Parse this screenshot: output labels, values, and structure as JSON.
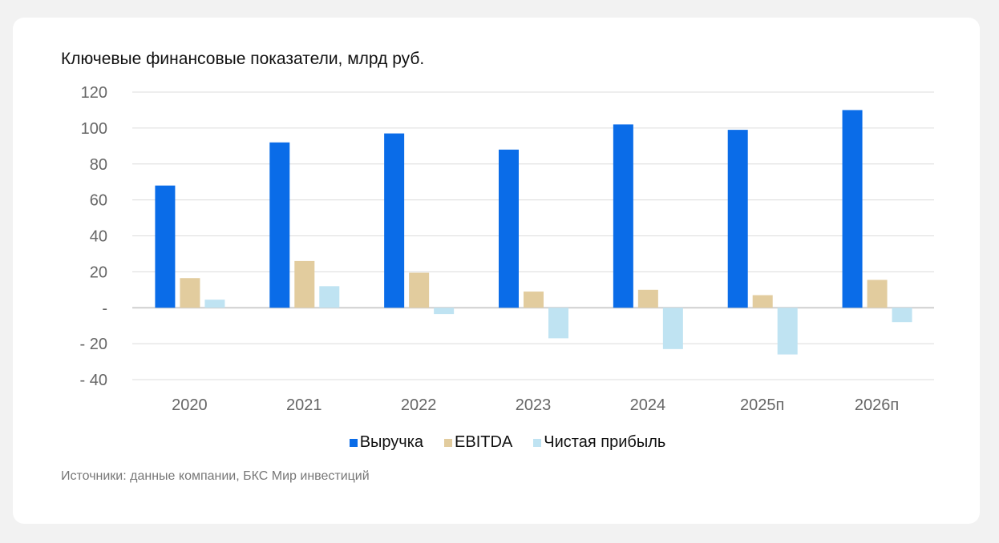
{
  "chart_data": {
    "type": "bar",
    "title": "Ключевые финансовые показатели, млрд руб.",
    "categories": [
      "2020",
      "2021",
      "2022",
      "2023",
      "2024",
      "2025п",
      "2026п"
    ],
    "series": [
      {
        "name": "Выручка",
        "color": "#0a6ce8",
        "values": [
          68,
          92,
          97,
          88,
          102,
          99,
          110
        ]
      },
      {
        "name": "EBITDA",
        "color": "#e2cc9e",
        "values": [
          16.5,
          26,
          19.5,
          9,
          10,
          7,
          15.5
        ]
      },
      {
        "name": "Чистая прибыль",
        "color": "#bfe3f2",
        "values": [
          4.5,
          12,
          -3.5,
          -17,
          -23,
          -26,
          -8
        ]
      }
    ],
    "yticks": [
      120,
      100,
      80,
      60,
      40,
      20,
      0,
      -20,
      -40
    ],
    "ytick_labels": [
      "120",
      "100",
      "80",
      "60",
      "40",
      "20",
      "-",
      "- 20",
      "- 40"
    ],
    "ylim": [
      -40,
      120
    ],
    "grid": true,
    "legend_position": "bottom",
    "source": "Источники: данные компании, БКС Мир инвестиций"
  }
}
